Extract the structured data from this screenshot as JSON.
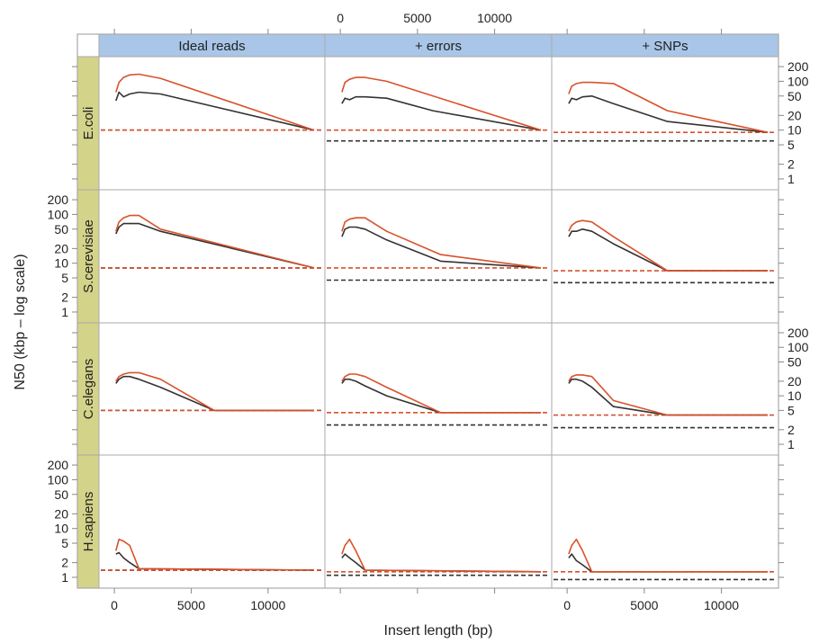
{
  "chart_data": {
    "type": "line",
    "xlabel": "Insert length (bp)",
    "ylabel": "N50 (kbp – log scale)",
    "xlim": [
      -1000,
      13700
    ],
    "ylim": [
      0.6,
      320
    ],
    "log_y": true,
    "grid": false,
    "x_ticks": [
      0,
      5000,
      10000
    ],
    "x_tick_labels": [
      "0",
      "5000",
      "10000"
    ],
    "y_ticks": [
      1,
      2,
      5,
      10,
      20,
      50,
      100,
      200
    ],
    "y_tick_labels": [
      "1",
      "2",
      "5",
      "10",
      "20",
      "50",
      "100",
      "200"
    ],
    "columns": [
      "Ideal reads",
      "+ errors",
      "+ SNPs"
    ],
    "rows": [
      "E.coli",
      "S.cerevisiae",
      "C.elegans",
      "H.sapiens"
    ],
    "colors": {
      "red_line": "#d9512c",
      "dark_line": "#333333",
      "col_strip": "#a9c6e8",
      "row_strip": "#d4d38a",
      "panel_border": "#a9a9a9"
    },
    "panels": [
      {
        "row": "E.coli",
        "column": "Ideal reads",
        "red": {
          "x": [
            100,
            300,
            600,
            1000,
            1600,
            3000,
            13000
          ],
          "y": [
            60,
            95,
            120,
            135,
            140,
            115,
            10
          ]
        },
        "black": {
          "x": [
            100,
            300,
            600,
            1000,
            1600,
            3000,
            13000
          ],
          "y": [
            40,
            60,
            48,
            55,
            60,
            55,
            10
          ]
        },
        "red_hline": 10,
        "black_hline": 10
      },
      {
        "row": "E.coli",
        "column": "+ errors",
        "red": {
          "x": [
            100,
            300,
            600,
            1000,
            1600,
            3000,
            13000
          ],
          "y": [
            60,
            95,
            110,
            120,
            120,
            100,
            10
          ]
        },
        "black": {
          "x": [
            100,
            300,
            600,
            1000,
            1600,
            3000,
            6000,
            13000
          ],
          "y": [
            35,
            45,
            42,
            48,
            48,
            45,
            25,
            10
          ]
        },
        "red_hline": 10,
        "black_hline": 6
      },
      {
        "row": "E.coli",
        "column": "+ SNPs",
        "red": {
          "x": [
            100,
            300,
            600,
            1000,
            1600,
            3000,
            6500,
            13000
          ],
          "y": [
            55,
            80,
            90,
            95,
            95,
            90,
            25,
            9
          ]
        },
        "black": {
          "x": [
            100,
            300,
            600,
            1000,
            1600,
            3000,
            6500,
            13000
          ],
          "y": [
            35,
            45,
            42,
            48,
            50,
            35,
            15,
            9
          ]
        },
        "red_hline": 9,
        "black_hline": 6
      },
      {
        "row": "S.cerevisiae",
        "column": "Ideal reads",
        "red": {
          "x": [
            100,
            300,
            600,
            1000,
            1600,
            3000,
            13000
          ],
          "y": [
            45,
            70,
            85,
            95,
            95,
            50,
            8
          ]
        },
        "black": {
          "x": [
            100,
            300,
            600,
            1000,
            1600,
            3000,
            13000
          ],
          "y": [
            40,
            55,
            65,
            65,
            65,
            45,
            8
          ]
        },
        "red_hline": 8,
        "black_hline": 8
      },
      {
        "row": "S.cerevisiae",
        "column": "+ errors",
        "red": {
          "x": [
            100,
            300,
            600,
            1000,
            1600,
            3000,
            6500,
            13000
          ],
          "y": [
            45,
            70,
            80,
            85,
            85,
            45,
            15,
            8
          ]
        },
        "black": {
          "x": [
            100,
            300,
            600,
            1000,
            1600,
            3000,
            6500,
            13000
          ],
          "y": [
            35,
            50,
            55,
            55,
            50,
            30,
            11,
            8
          ]
        },
        "red_hline": 8,
        "black_hline": 4.5
      },
      {
        "row": "S.cerevisiae",
        "column": "+ SNPs",
        "red": {
          "x": [
            100,
            300,
            600,
            1000,
            1600,
            3000,
            6500,
            13000
          ],
          "y": [
            45,
            60,
            70,
            75,
            70,
            35,
            7,
            7
          ]
        },
        "black": {
          "x": [
            100,
            300,
            600,
            1000,
            1600,
            3000,
            6500,
            13000
          ],
          "y": [
            35,
            45,
            45,
            50,
            45,
            25,
            7,
            7
          ]
        },
        "red_hline": 7,
        "black_hline": 4
      },
      {
        "row": "C.elegans",
        "column": "Ideal reads",
        "red": {
          "x": [
            100,
            300,
            600,
            1000,
            1600,
            3000,
            6500,
            13000
          ],
          "y": [
            20,
            25,
            28,
            30,
            30,
            22,
            5,
            5
          ]
        },
        "black": {
          "x": [
            100,
            300,
            600,
            1000,
            1600,
            3000,
            6500,
            13000
          ],
          "y": [
            18,
            22,
            25,
            25,
            22,
            15,
            5,
            5
          ]
        },
        "red_hline": 5,
        "black_hline": 5
      },
      {
        "row": "C.elegans",
        "column": "+ errors",
        "red": {
          "x": [
            100,
            300,
            600,
            1000,
            1600,
            3000,
            6500,
            13000
          ],
          "y": [
            20,
            25,
            28,
            28,
            25,
            15,
            4.5,
            4.5
          ]
        },
        "black": {
          "x": [
            100,
            300,
            600,
            1000,
            1600,
            3000,
            6500,
            13000
          ],
          "y": [
            18,
            22,
            22,
            20,
            16,
            10,
            4.5,
            4.5
          ]
        },
        "red_hline": 4.5,
        "black_hline": 2.5
      },
      {
        "row": "C.elegans",
        "column": "+ SNPs",
        "red": {
          "x": [
            100,
            300,
            600,
            1000,
            1600,
            3000,
            6500,
            13000
          ],
          "y": [
            20,
            25,
            27,
            27,
            25,
            8,
            4,
            4
          ]
        },
        "black": {
          "x": [
            100,
            300,
            600,
            1000,
            1600,
            3000,
            6500,
            13000
          ],
          "y": [
            18,
            22,
            22,
            20,
            15,
            6,
            4,
            4
          ]
        },
        "red_hline": 4,
        "black_hline": 2.2
      },
      {
        "row": "H.sapiens",
        "column": "Ideal reads",
        "red": {
          "x": [
            100,
            300,
            600,
            1000,
            1600,
            13000
          ],
          "y": [
            3.5,
            6,
            5.5,
            4.5,
            1.5,
            1.4
          ]
        },
        "black": {
          "x": [
            100,
            300,
            600,
            1000,
            1600,
            13000
          ],
          "y": [
            3,
            3.2,
            2.5,
            2,
            1.5,
            1.4
          ]
        },
        "red_hline": 1.4,
        "black_hline": 1.4
      },
      {
        "row": "H.sapiens",
        "column": "+ errors",
        "red": {
          "x": [
            100,
            300,
            600,
            1000,
            1600,
            13000
          ],
          "y": [
            3,
            4.5,
            6,
            3.5,
            1.4,
            1.3
          ]
        },
        "black": {
          "x": [
            100,
            300,
            600,
            1000,
            1600,
            13000
          ],
          "y": [
            2.5,
            3,
            2.5,
            2,
            1.4,
            1.3
          ]
        },
        "red_hline": 1.3,
        "black_hline": 1.1
      },
      {
        "row": "H.sapiens",
        "column": "+ SNPs",
        "red": {
          "x": [
            100,
            300,
            600,
            1000,
            1600,
            13000
          ],
          "y": [
            3,
            4.5,
            6,
            3.5,
            1.3,
            1.3
          ]
        },
        "black": {
          "x": [
            100,
            300,
            600,
            1000,
            1600,
            13000
          ],
          "y": [
            2.5,
            3,
            2.2,
            1.8,
            1.3,
            1.3
          ]
        },
        "red_hline": 1.3,
        "black_hline": 0.9
      }
    ]
  }
}
